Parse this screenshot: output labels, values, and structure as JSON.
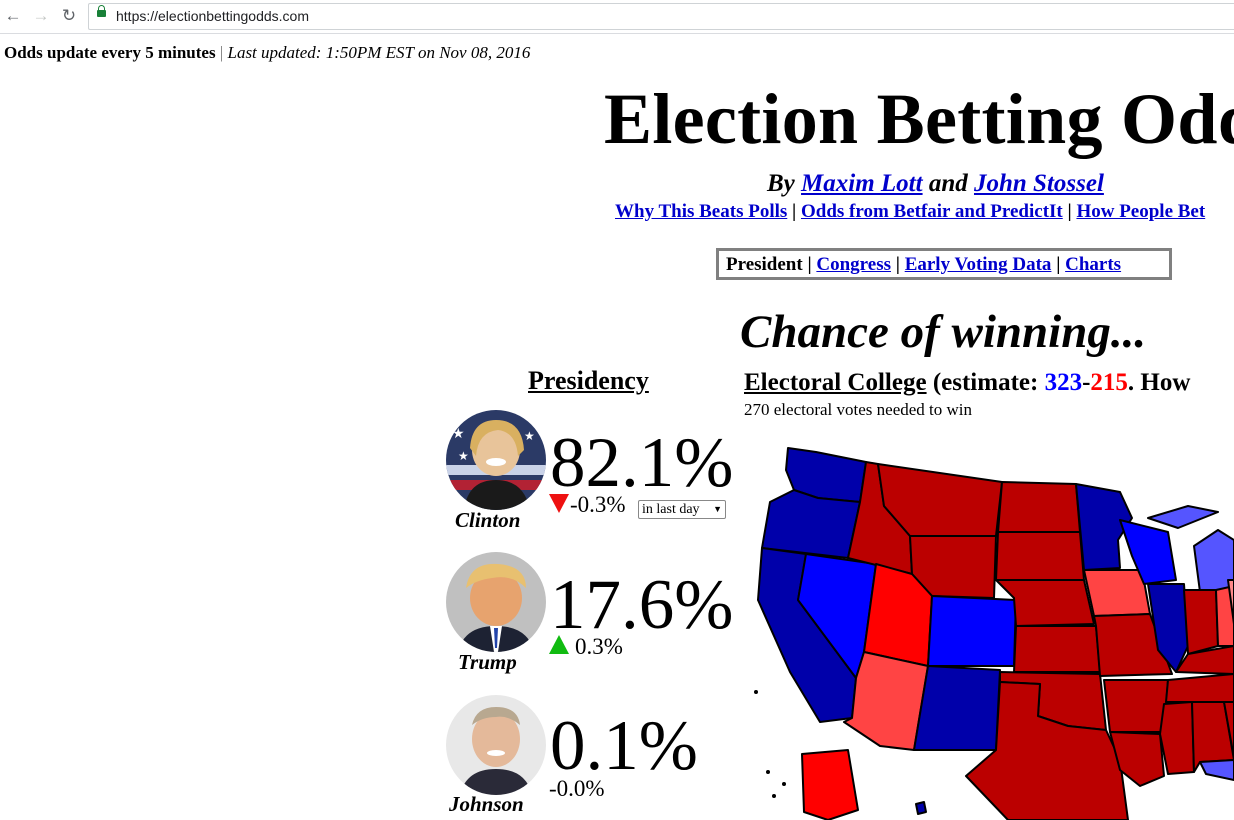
{
  "browser": {
    "url": "https://electionbettingodds.com"
  },
  "updated": {
    "bold": "Odds update every 5 minutes",
    "separator": "|",
    "italic": "Last updated: 1:50PM EST on Nov 08, 2016"
  },
  "title": "Election Betting Odds",
  "byline": {
    "prefix": "By ",
    "author1": "Maxim Lott",
    "and": " and ",
    "author2": "John Stossel"
  },
  "links": {
    "items": [
      "Why This Beats Polls",
      "Odds from Betfair and PredictIt",
      "How People Bet"
    ],
    "separator": " | "
  },
  "tabs": {
    "current": "President",
    "separator": " | ",
    "items": [
      "Congress",
      "Early Voting Data",
      "Charts"
    ]
  },
  "chance_heading": "Chance of winning...",
  "presidency_heading": "Presidency",
  "electoral": {
    "heading": "Electoral College",
    "estimate_prefix": " (estimate: ",
    "dem": "323",
    "dash": "-",
    "rep": "215",
    "suffix": ". How",
    "subtext": "270 electoral votes needed to win"
  },
  "candidates": [
    {
      "name": "Clinton",
      "percent": "82.1%",
      "change": "-0.3%",
      "direction": "down"
    },
    {
      "name": "Trump",
      "percent": "17.6%",
      "change": "0.3%",
      "direction": "up"
    },
    {
      "name": "Johnson",
      "percent": "0.1%",
      "change": "-0.0%",
      "direction": "none"
    }
  ],
  "period_select": {
    "selected": "in last day"
  },
  "colors": {
    "link": "#0000cc",
    "dem_solid": "#0000aa",
    "dem_lean": "#0000ff",
    "dem_light": "#5555ff",
    "rep_solid": "#bb0000",
    "rep_lean": "#ff0000",
    "rep_light": "#ff4444",
    "down_arrow": "#ee1111",
    "up_arrow": "#11bb11"
  },
  "icons": [
    "back-arrow-icon",
    "forward-arrow-icon",
    "reload-icon",
    "lock-icon"
  ]
}
